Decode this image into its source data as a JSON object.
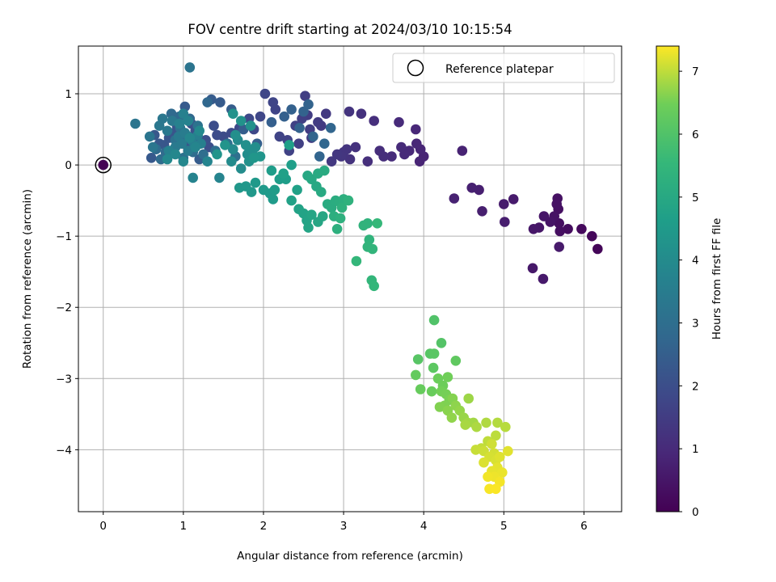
{
  "chart_data": {
    "type": "scatter",
    "title": "FOV centre drift starting at 2024/03/10 10:15:54",
    "xlabel": "Angular distance from reference (arcmin)",
    "ylabel": "Rotation from reference (arcmin)",
    "xlim": [
      -0.31,
      6.47
    ],
    "ylim": [
      -4.87,
      1.67
    ],
    "xticks": [
      0,
      1,
      2,
      3,
      4,
      5,
      6
    ],
    "xtick_labels": [
      "0",
      "1",
      "2",
      "3",
      "4",
      "5",
      "6"
    ],
    "yticks": [
      1,
      0,
      -1,
      -2,
      -3,
      -4
    ],
    "ytick_labels": [
      "1",
      "0",
      "−1",
      "−2",
      "−3",
      "−4"
    ],
    "grid": true,
    "legend": {
      "placement": "top-right",
      "entries": [
        "Reference platepar"
      ]
    },
    "reference_point": {
      "x": 0,
      "y": 0,
      "label": "Reference platepar",
      "color": "#440154"
    },
    "colorbar": {
      "label": "Hours from first FF file",
      "range": [
        0,
        7.4
      ],
      "ticks": [
        0,
        1,
        2,
        3,
        4,
        5,
        6,
        7
      ],
      "tick_labels": [
        "0",
        "1",
        "2",
        "3",
        "4",
        "5",
        "6",
        "7"
      ],
      "colormap": "viridis"
    },
    "points": [
      [
        6.17,
        -1.18,
        0.1
      ],
      [
        6.1,
        -1.0,
        0.15
      ],
      [
        5.97,
        -0.9,
        0.2
      ],
      [
        5.8,
        -0.9,
        0.25
      ],
      [
        5.7,
        -0.93,
        0.3
      ],
      [
        5.69,
        -0.82,
        0.32
      ],
      [
        5.68,
        -0.62,
        0.35
      ],
      [
        5.67,
        -0.47,
        0.38
      ],
      [
        5.66,
        -0.55,
        0.4
      ],
      [
        5.63,
        -0.72,
        0.42
      ],
      [
        5.58,
        -0.8,
        0.45
      ],
      [
        5.5,
        -0.72,
        0.48
      ],
      [
        5.44,
        -0.88,
        0.5
      ],
      [
        5.37,
        -0.9,
        0.52
      ],
      [
        5.36,
        -1.45,
        0.55
      ],
      [
        5.49,
        -1.6,
        0.58
      ],
      [
        5.69,
        -1.15,
        0.6
      ],
      [
        5.12,
        -0.48,
        0.62
      ],
      [
        5.0,
        -0.55,
        0.65
      ],
      [
        5.01,
        -0.8,
        0.68
      ],
      [
        4.73,
        -0.65,
        0.7
      ],
      [
        4.69,
        -0.35,
        0.72
      ],
      [
        4.6,
        -0.32,
        0.75
      ],
      [
        4.38,
        -0.47,
        0.78
      ],
      [
        4.48,
        0.2,
        0.8
      ],
      [
        4.0,
        0.12,
        0.82
      ],
      [
        3.95,
        0.05,
        0.85
      ],
      [
        3.96,
        0.22,
        0.88
      ],
      [
        3.91,
        0.3,
        0.9
      ],
      [
        3.9,
        0.5,
        0.92
      ],
      [
        3.82,
        0.2,
        0.95
      ],
      [
        3.76,
        0.15,
        0.98
      ],
      [
        3.72,
        0.25,
        1.0
      ],
      [
        3.69,
        0.6,
        1.02
      ],
      [
        3.6,
        0.12,
        1.05
      ],
      [
        3.5,
        0.12,
        1.08
      ],
      [
        3.45,
        0.2,
        1.1
      ],
      [
        3.38,
        0.62,
        1.12
      ],
      [
        3.3,
        0.05,
        1.15
      ],
      [
        3.22,
        0.72,
        1.18
      ],
      [
        3.15,
        0.25,
        1.2
      ],
      [
        3.08,
        0.08,
        1.22
      ],
      [
        3.07,
        0.75,
        1.25
      ],
      [
        3.04,
        0.22,
        1.28
      ],
      [
        3.0,
        0.18,
        1.3
      ],
      [
        2.97,
        0.12,
        1.32
      ],
      [
        2.92,
        0.15,
        1.35
      ],
      [
        2.85,
        0.05,
        1.38
      ],
      [
        2.78,
        0.72,
        1.4
      ],
      [
        2.72,
        0.55,
        1.42
      ],
      [
        2.68,
        0.6,
        1.45
      ],
      [
        2.6,
        0.38,
        1.48
      ],
      [
        2.58,
        0.5,
        1.5
      ],
      [
        2.55,
        0.7,
        1.52
      ],
      [
        2.52,
        0.97,
        1.55
      ],
      [
        2.48,
        0.65,
        1.58
      ],
      [
        2.44,
        0.3,
        1.6
      ],
      [
        2.4,
        0.55,
        1.62
      ],
      [
        2.32,
        0.2,
        1.65
      ],
      [
        2.3,
        0.35,
        1.68
      ],
      [
        2.2,
        0.4,
        1.7
      ],
      [
        2.15,
        0.78,
        1.72
      ],
      [
        2.12,
        0.88,
        1.75
      ],
      [
        2.02,
        1.0,
        1.78
      ],
      [
        1.96,
        0.68,
        1.8
      ],
      [
        1.88,
        0.5,
        1.82
      ],
      [
        1.82,
        0.65,
        1.85
      ],
      [
        1.7,
        0.52,
        1.88
      ],
      [
        1.6,
        0.45,
        1.9
      ],
      [
        1.5,
        0.4,
        1.92
      ],
      [
        1.42,
        0.42,
        1.95
      ],
      [
        1.38,
        0.55,
        1.98
      ],
      [
        1.32,
        0.25,
        2.0
      ],
      [
        1.28,
        0.35,
        2.02
      ],
      [
        1.2,
        0.3,
        2.05
      ],
      [
        1.15,
        0.48,
        2.08
      ],
      [
        1.1,
        0.58,
        2.1
      ],
      [
        1.04,
        0.28,
        2.12
      ],
      [
        1.0,
        0.4,
        2.15
      ],
      [
        0.92,
        0.55,
        2.18
      ],
      [
        0.88,
        0.45,
        2.2
      ],
      [
        0.82,
        0.38,
        2.22
      ],
      [
        0.76,
        0.28,
        2.25
      ],
      [
        0.7,
        0.3,
        2.28
      ],
      [
        0.64,
        0.42,
        2.3
      ],
      [
        0.6,
        0.1,
        2.32
      ],
      [
        1.02,
        0.82,
        2.35
      ],
      [
        1.46,
        0.88,
        2.38
      ],
      [
        1.35,
        0.92,
        2.4
      ],
      [
        1.2,
        0.08,
        2.42
      ],
      [
        1.6,
        0.78,
        2.45
      ],
      [
        1.75,
        0.5,
        2.48
      ],
      [
        1.92,
        0.3,
        2.5
      ],
      [
        2.1,
        0.6,
        2.52
      ],
      [
        2.26,
        0.68,
        2.55
      ],
      [
        2.35,
        0.78,
        2.58
      ],
      [
        2.45,
        0.52,
        2.6
      ],
      [
        2.5,
        0.75,
        2.62
      ],
      [
        2.56,
        0.85,
        2.65
      ],
      [
        2.62,
        0.4,
        2.68
      ],
      [
        2.7,
        0.12,
        2.7
      ],
      [
        2.84,
        0.52,
        2.72
      ],
      [
        2.76,
        0.3,
        2.75
      ],
      [
        1.3,
        0.88,
        2.78
      ],
      [
        1.08,
        0.65,
        2.8
      ],
      [
        0.95,
        0.68,
        2.82
      ],
      [
        0.85,
        0.72,
        2.85
      ],
      [
        0.78,
        0.18,
        2.88
      ],
      [
        0.72,
        0.08,
        2.9
      ],
      [
        0.66,
        0.22,
        2.92
      ],
      [
        1.12,
        0.18,
        2.95
      ],
      [
        1.25,
        0.15,
        2.98
      ],
      [
        1.4,
        0.2,
        3.0
      ],
      [
        1.55,
        0.3,
        3.02
      ],
      [
        1.65,
        0.12,
        3.05
      ],
      [
        1.0,
        0.1,
        3.08
      ],
      [
        0.9,
        0.35,
        3.1
      ],
      [
        0.96,
        0.52,
        3.12
      ],
      [
        1.06,
        0.4,
        3.15
      ],
      [
        1.18,
        0.55,
        3.18
      ],
      [
        1.08,
        1.37,
        3.2
      ],
      [
        0.4,
        0.58,
        3.22
      ],
      [
        0.58,
        0.4,
        3.25
      ],
      [
        0.62,
        0.25,
        3.28
      ],
      [
        0.7,
        0.55,
        3.3
      ],
      [
        0.74,
        0.65,
        3.32
      ],
      [
        0.8,
        0.48,
        3.35
      ],
      [
        0.86,
        0.62,
        3.38
      ],
      [
        0.9,
        0.25,
        3.4
      ],
      [
        0.94,
        0.4,
        3.42
      ],
      [
        0.98,
        0.3,
        3.45
      ],
      [
        1.02,
        0.45,
        3.48
      ],
      [
        1.06,
        0.2,
        3.5
      ],
      [
        1.1,
        0.35,
        3.52
      ],
      [
        1.14,
        0.28,
        3.55
      ],
      [
        1.18,
        0.42,
        3.58
      ],
      [
        1.22,
        0.3,
        3.6
      ],
      [
        1.0,
        0.72,
        3.62
      ],
      [
        0.95,
        0.58,
        3.65
      ],
      [
        0.82,
        0.2,
        3.68
      ],
      [
        1.06,
        0.62,
        3.7
      ],
      [
        1.12,
        -0.18,
        3.72
      ],
      [
        1.45,
        -0.18,
        3.75
      ],
      [
        1.3,
        0.05,
        3.78
      ],
      [
        1.15,
        0.25,
        3.8
      ],
      [
        1.08,
        0.38,
        3.82
      ],
      [
        1.0,
        0.05,
        3.85
      ],
      [
        0.9,
        0.15,
        3.88
      ],
      [
        0.8,
        0.08,
        3.9
      ],
      [
        1.2,
        0.48,
        3.92
      ],
      [
        1.62,
        0.22,
        3.95
      ],
      [
        1.68,
        0.35,
        3.98
      ],
      [
        1.6,
        0.05,
        4.0
      ],
      [
        1.72,
        -0.05,
        4.02
      ],
      [
        1.8,
        0.15,
        4.05
      ],
      [
        1.86,
        0.2,
        4.08
      ],
      [
        1.9,
        0.25,
        4.1
      ],
      [
        1.65,
        0.42,
        4.12
      ],
      [
        1.78,
        0.28,
        4.15
      ],
      [
        1.82,
        0.05,
        4.18
      ],
      [
        1.84,
        0.55,
        4.2
      ],
      [
        1.72,
        0.62,
        4.22
      ],
      [
        1.62,
        0.72,
        4.25
      ],
      [
        1.52,
        0.28,
        4.28
      ],
      [
        1.42,
        0.15,
        4.3
      ],
      [
        1.96,
        0.12,
        4.32
      ],
      [
        1.88,
        0.1,
        4.35
      ],
      [
        1.7,
        -0.32,
        4.38
      ],
      [
        1.78,
        -0.3,
        4.4
      ],
      [
        1.85,
        -0.38,
        4.42
      ],
      [
        1.9,
        -0.25,
        4.45
      ],
      [
        2.0,
        -0.35,
        4.48
      ],
      [
        2.08,
        -0.4,
        4.5
      ],
      [
        2.12,
        -0.48,
        4.52
      ],
      [
        2.14,
        -0.35,
        4.55
      ],
      [
        2.1,
        -0.08,
        4.58
      ],
      [
        2.2,
        -0.2,
        4.6
      ],
      [
        2.28,
        -0.2,
        4.62
      ],
      [
        2.35,
        0.0,
        4.65
      ],
      [
        2.32,
        0.28,
        4.68
      ],
      [
        2.25,
        -0.12,
        4.7
      ],
      [
        2.42,
        -0.35,
        4.72
      ],
      [
        2.35,
        -0.5,
        4.75
      ],
      [
        2.44,
        -0.62,
        4.78
      ],
      [
        2.5,
        -0.68,
        4.8
      ],
      [
        2.54,
        -0.78,
        4.82
      ],
      [
        2.56,
        -0.88,
        4.85
      ],
      [
        2.6,
        -0.7,
        4.88
      ],
      [
        2.68,
        -0.8,
        4.9
      ],
      [
        2.74,
        -0.72,
        4.92
      ],
      [
        2.55,
        -0.15,
        4.95
      ],
      [
        2.6,
        -0.2,
        4.98
      ],
      [
        2.66,
        -0.3,
        5.0
      ],
      [
        2.68,
        -0.12,
        5.02
      ],
      [
        2.72,
        -0.38,
        5.05
      ],
      [
        2.76,
        -0.08,
        5.08
      ],
      [
        2.8,
        -0.55,
        5.1
      ],
      [
        2.85,
        -0.6,
        5.12
      ],
      [
        2.9,
        -0.5,
        5.15
      ],
      [
        2.95,
        -0.52,
        5.18
      ],
      [
        3.0,
        -0.48,
        5.2
      ],
      [
        2.88,
        -0.72,
        5.22
      ],
      [
        2.92,
        -0.9,
        5.25
      ],
      [
        2.96,
        -0.75,
        5.28
      ],
      [
        2.98,
        -0.6,
        5.3
      ],
      [
        3.06,
        -0.5,
        5.32
      ],
      [
        3.3,
        -0.82,
        5.35
      ],
      [
        3.25,
        -0.85,
        5.38
      ],
      [
        3.32,
        -1.05,
        5.4
      ],
      [
        3.3,
        -1.15,
        5.42
      ],
      [
        3.36,
        -1.18,
        5.45
      ],
      [
        3.35,
        -1.62,
        5.48
      ],
      [
        3.38,
        -1.7,
        5.5
      ],
      [
        3.16,
        -1.35,
        5.52
      ],
      [
        3.42,
        -0.82,
        5.55
      ],
      [
        4.13,
        -2.18,
        6.0
      ],
      [
        4.22,
        -2.5,
        6.05
      ],
      [
        4.08,
        -2.65,
        6.1
      ],
      [
        3.93,
        -2.73,
        6.12
      ],
      [
        4.13,
        -2.65,
        6.15
      ],
      [
        4.12,
        -2.85,
        6.2
      ],
      [
        4.4,
        -2.75,
        6.25
      ],
      [
        3.9,
        -2.95,
        6.3
      ],
      [
        3.96,
        -3.15,
        6.35
      ],
      [
        4.1,
        -3.18,
        6.38
      ],
      [
        4.18,
        -3.0,
        6.42
      ],
      [
        4.24,
        -3.1,
        6.45
      ],
      [
        4.3,
        -2.98,
        6.48
      ],
      [
        4.22,
        -3.18,
        6.5
      ],
      [
        4.28,
        -3.22,
        6.52
      ],
      [
        4.32,
        -3.3,
        6.55
      ],
      [
        4.26,
        -3.38,
        6.58
      ],
      [
        4.2,
        -3.4,
        6.6
      ],
      [
        4.36,
        -3.28,
        6.62
      ],
      [
        4.3,
        -3.45,
        6.65
      ],
      [
        4.4,
        -3.38,
        6.68
      ],
      [
        4.35,
        -3.55,
        6.7
      ],
      [
        4.45,
        -3.45,
        6.72
      ],
      [
        4.5,
        -3.55,
        6.75
      ],
      [
        4.56,
        -3.28,
        6.78
      ],
      [
        4.55,
        -3.62,
        6.8
      ],
      [
        4.62,
        -3.62,
        6.82
      ],
      [
        4.52,
        -3.65,
        6.85
      ],
      [
        4.66,
        -3.68,
        6.88
      ],
      [
        4.78,
        -3.62,
        6.9
      ],
      [
        4.92,
        -3.62,
        6.92
      ],
      [
        5.02,
        -3.68,
        6.95
      ],
      [
        4.9,
        -3.8,
        6.98
      ],
      [
        4.8,
        -3.88,
        7.0
      ],
      [
        4.72,
        -3.98,
        7.02
      ],
      [
        4.65,
        -4.0,
        7.05
      ],
      [
        4.75,
        -4.02,
        7.08
      ],
      [
        4.85,
        -3.92,
        7.1
      ],
      [
        4.88,
        -4.05,
        7.12
      ],
      [
        4.82,
        -4.1,
        7.14
      ],
      [
        4.9,
        -4.15,
        7.16
      ],
      [
        4.75,
        -4.18,
        7.18
      ],
      [
        4.95,
        -4.1,
        7.2
      ],
      [
        5.05,
        -4.02,
        7.22
      ],
      [
        4.92,
        -4.25,
        7.24
      ],
      [
        4.85,
        -4.3,
        7.26
      ],
      [
        4.98,
        -4.32,
        7.28
      ],
      [
        4.88,
        -4.38,
        7.3
      ],
      [
        4.8,
        -4.38,
        7.32
      ],
      [
        4.95,
        -4.45,
        7.34
      ],
      [
        4.82,
        -4.55,
        7.36
      ],
      [
        4.9,
        -4.55,
        7.38
      ]
    ]
  }
}
